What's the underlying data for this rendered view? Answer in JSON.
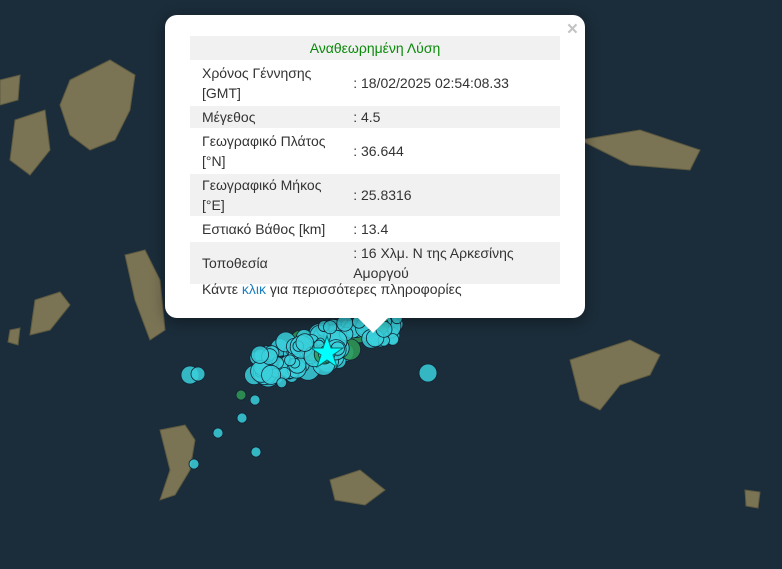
{
  "popup": {
    "title": "Αναθεωρημένη Λύση",
    "close_icon": "×",
    "rows": [
      {
        "label": "Χρόνος Γέννησης [GMT]",
        "value": ": 18/02/2025 02:54:08.33"
      },
      {
        "label": "Μέγεθος",
        "value": ": 4.5"
      },
      {
        "label": "Γεωγραφικό Πλάτος [°N]",
        "value": ": 36.644"
      },
      {
        "label": "Γεωγραφικό Μήκος [°E]",
        "value": ": 25.8316"
      },
      {
        "label": "Εστιακό Βάθος [km]",
        "value": ": 13.4"
      },
      {
        "label": "Τοποθεσία",
        "value": ": 16 Χλμ. N της Αρκεσίνης Αμοργού"
      }
    ],
    "more_prefix": "Κάντε ",
    "more_link": "κλικ",
    "more_suffix": " για περισσότερες πληροφορίες"
  },
  "map": {
    "sea_color": "#1b2d3a",
    "land_color": "#6e6a4e",
    "marker_color": "#3ad0dc",
    "older_marker_color": "#2e9a56",
    "epicenter_color": "#00ffff",
    "epicenter_icon": "star"
  }
}
